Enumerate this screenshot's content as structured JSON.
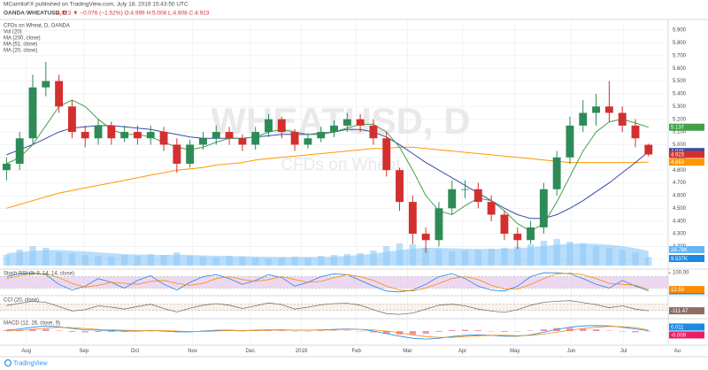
{
  "header": {
    "publisher": "MCarrilloFX published on TradingView.com, July 18, 2019 15:43:50 UTC",
    "symbol": "OANDA:WHEATUSD, D",
    "quote": "4.923 ▼ −0.076 (−1.52%) O:4.999 H:5.008 L:4.908 C:4.923"
  },
  "footer": {
    "brand": "TradingView"
  },
  "chart_data": [
    {
      "type": "candlestick",
      "title": "CFDs on Wheat, D, OANDA",
      "watermark": "WHEATUSD, D",
      "watermark_subtitle": "CFDs on Wheat",
      "up_color": "#2e8b57",
      "down_color": "#d32f2f",
      "grid": true,
      "x": [
        0,
        1,
        2,
        3,
        4,
        5,
        6,
        7,
        8,
        9,
        10,
        11,
        12,
        13,
        14,
        15,
        16,
        17,
        18,
        19,
        20,
        21,
        22,
        23,
        24,
        25,
        26,
        27,
        28,
        29,
        30,
        31,
        32,
        33,
        34,
        35,
        36,
        37,
        38,
        39,
        40,
        41,
        42,
        43,
        44,
        45,
        46,
        47,
        48,
        49
      ],
      "open": [
        4.8,
        4.85,
        5.05,
        5.45,
        5.5,
        5.3,
        5.1,
        5.05,
        5.15,
        5.05,
        5.1,
        5.05,
        5.1,
        5.0,
        4.85,
        5.0,
        5.05,
        5.1,
        5.05,
        5.0,
        5.1,
        5.2,
        5.1,
        5.0,
        5.05,
        5.1,
        5.15,
        5.2,
        5.15,
        5.05,
        4.8,
        4.55,
        4.3,
        4.25,
        4.5,
        4.65,
        4.65,
        4.55,
        4.45,
        4.3,
        4.25,
        4.35,
        4.65,
        4.9,
        5.15,
        5.25,
        5.3,
        5.25,
        5.15,
        4.999
      ],
      "high": [
        4.9,
        5.1,
        5.55,
        5.65,
        5.55,
        5.35,
        5.15,
        5.2,
        5.18,
        5.15,
        5.15,
        5.15,
        5.14,
        5.05,
        5.04,
        5.1,
        5.15,
        5.14,
        5.08,
        5.14,
        5.24,
        5.22,
        5.12,
        5.09,
        5.14,
        5.19,
        5.25,
        5.24,
        5.2,
        5.1,
        4.82,
        4.6,
        4.35,
        4.55,
        4.72,
        4.72,
        4.7,
        4.6,
        4.48,
        4.35,
        4.4,
        4.7,
        4.95,
        5.22,
        5.35,
        5.4,
        5.5,
        5.3,
        5.2,
        5.008
      ],
      "low": [
        4.72,
        4.8,
        5.0,
        5.38,
        5.25,
        5.05,
        4.98,
        5.0,
        5.0,
        5.02,
        5.0,
        5.0,
        4.95,
        4.78,
        4.82,
        4.96,
        5.0,
        5.0,
        4.95,
        4.96,
        5.06,
        5.05,
        4.95,
        4.97,
        5.02,
        5.06,
        5.1,
        5.1,
        5.0,
        4.75,
        4.48,
        4.22,
        4.15,
        4.2,
        4.45,
        4.58,
        4.5,
        4.4,
        4.25,
        4.18,
        4.22,
        4.3,
        4.6,
        4.85,
        5.1,
        5.15,
        5.18,
        5.1,
        4.98,
        4.908
      ],
      "close": [
        4.85,
        5.05,
        5.45,
        5.5,
        5.3,
        5.1,
        5.05,
        5.15,
        5.05,
        5.1,
        5.05,
        5.1,
        5.0,
        4.85,
        5.0,
        5.05,
        5.1,
        5.05,
        5.0,
        5.1,
        5.2,
        5.1,
        5.0,
        5.05,
        5.1,
        5.15,
        5.2,
        5.15,
        5.05,
        4.8,
        4.55,
        4.3,
        4.25,
        4.5,
        4.65,
        4.65,
        4.55,
        4.45,
        4.3,
        4.25,
        4.35,
        4.65,
        4.9,
        5.15,
        5.25,
        5.3,
        5.25,
        5.15,
        5.05,
        4.923
      ],
      "volume": {
        "name": "Vol (20)",
        "color": "#90caf9",
        "area_color": "#64b5f6",
        "values": [
          12000,
          18000,
          22000,
          20000,
          15000,
          14000,
          12000,
          11000,
          10000,
          12000,
          11000,
          13000,
          12000,
          15000,
          11000,
          10000,
          9000,
          11000,
          10000,
          9000,
          8000,
          9000,
          10000,
          9000,
          11000,
          12000,
          13000,
          14000,
          17000,
          22000,
          25000,
          24000,
          20000,
          18000,
          16000,
          17000,
          18000,
          19000,
          20000,
          21000,
          24000,
          28000,
          30000,
          27000,
          25000,
          22000,
          20000,
          18000,
          15000,
          9537
        ],
        "value_labels": [
          null,
          null,
          null,
          null,
          null,
          null,
          null,
          null,
          null,
          null,
          null,
          null,
          null,
          null,
          null,
          null,
          null,
          null,
          null,
          null,
          null,
          null,
          null,
          null,
          null,
          null,
          null,
          null,
          null,
          null,
          null,
          null,
          null,
          null,
          null,
          null,
          null,
          null,
          null,
          null,
          null,
          null,
          null,
          null,
          null,
          null,
          null,
          null,
          null,
          "9.537K"
        ],
        "ma_values": [
          14000,
          15000,
          16500,
          17500,
          17500,
          16800,
          16000,
          15000,
          14000,
          13000,
          12500,
          12000,
          12000,
          12200,
          12000,
          11500,
          11000,
          10800,
          10500,
          10200,
          10000,
          9800,
          9700,
          9700,
          9800,
          10200,
          11000,
          12000,
          13500,
          15500,
          17500,
          19000,
          20000,
          20000,
          19500,
          19000,
          18800,
          18800,
          19000,
          19500,
          20500,
          22000,
          23500,
          24500,
          25000,
          24500,
          23500,
          22000,
          19500,
          16780
        ],
        "ma_value_labels": [
          null,
          null,
          null,
          null,
          null,
          null,
          null,
          null,
          null,
          null,
          null,
          null,
          null,
          null,
          null,
          null,
          null,
          null,
          null,
          null,
          null,
          null,
          null,
          null,
          null,
          null,
          null,
          null,
          null,
          null,
          null,
          null,
          null,
          null,
          null,
          null,
          null,
          null,
          null,
          null,
          null,
          null,
          null,
          null,
          null,
          null,
          null,
          null,
          null,
          "16.78K"
        ],
        "lim": [
          0,
          60000
        ]
      },
      "series": [
        {
          "name": "MA (200, close)",
          "color": "#ff9800",
          "values": [
            4.5,
            4.53,
            4.56,
            4.59,
            4.62,
            4.64,
            4.66,
            4.68,
            4.7,
            4.72,
            4.74,
            4.76,
            4.78,
            4.8,
            4.81,
            4.82,
            4.84,
            4.85,
            4.86,
            4.88,
            4.89,
            4.9,
            4.91,
            4.92,
            4.93,
            4.94,
            4.95,
            4.96,
            4.97,
            4.97,
            4.98,
            4.98,
            4.97,
            4.96,
            4.95,
            4.94,
            4.93,
            4.92,
            4.91,
            4.9,
            4.89,
            4.88,
            4.87,
            4.86,
            4.86,
            4.86,
            4.86,
            4.86,
            4.86,
            4.863
          ]
        },
        {
          "name": "MA (51, close)",
          "color": "#3949ab",
          "values": [
            4.92,
            4.96,
            5.0,
            5.05,
            5.1,
            5.13,
            5.14,
            5.15,
            5.15,
            5.14,
            5.13,
            5.12,
            5.1,
            5.08,
            5.06,
            5.05,
            5.05,
            5.05,
            5.05,
            5.06,
            5.07,
            5.08,
            5.08,
            5.08,
            5.09,
            5.1,
            5.12,
            5.12,
            5.1,
            5.06,
            5.0,
            4.93,
            4.86,
            4.8,
            4.74,
            4.68,
            4.62,
            4.56,
            4.5,
            4.45,
            4.42,
            4.42,
            4.45,
            4.5,
            4.56,
            4.63,
            4.7,
            4.78,
            4.86,
            4.946
          ]
        },
        {
          "name": "MA (20, close)",
          "color": "#43a047",
          "values": [
            4.85,
            4.9,
            5.0,
            5.15,
            5.3,
            5.35,
            5.3,
            5.2,
            5.12,
            5.08,
            5.08,
            5.06,
            5.02,
            4.98,
            4.96,
            4.98,
            5.02,
            5.05,
            5.05,
            5.06,
            5.1,
            5.12,
            5.1,
            5.08,
            5.08,
            5.1,
            5.13,
            5.16,
            5.16,
            5.1,
            4.98,
            4.8,
            4.6,
            4.48,
            4.45,
            4.52,
            4.58,
            4.56,
            4.48,
            4.38,
            4.32,
            4.38,
            4.55,
            4.75,
            4.95,
            5.1,
            5.18,
            5.2,
            5.17,
            5.137
          ]
        }
      ],
      "xlim": [
        -0.5,
        50.5
      ],
      "xticks": [
        {
          "value": 1.5,
          "label": "Aug"
        },
        {
          "value": 5.9,
          "label": "Sep"
        },
        {
          "value": 9.8,
          "label": "Oct"
        },
        {
          "value": 14.2,
          "label": "Nov"
        },
        {
          "value": 18.6,
          "label": "Dec"
        },
        {
          "value": 22.5,
          "label": "2019"
        },
        {
          "value": 26.7,
          "label": "Feb"
        },
        {
          "value": 30.6,
          "label": "Mar"
        },
        {
          "value": 34.8,
          "label": "Apr"
        },
        {
          "value": 38.8,
          "label": "May"
        },
        {
          "value": 43.1,
          "label": "Jun"
        },
        {
          "value": 47.1,
          "label": "Jul"
        },
        {
          "value": 51.2,
          "label": "Au"
        }
      ],
      "ylim": [
        4.05,
        5.97
      ],
      "yticks": [
        {
          "value": 4.1,
          "label": "4.100"
        },
        {
          "value": 4.2,
          "label": "4.200"
        },
        {
          "value": 4.3,
          "label": "4.300"
        },
        {
          "value": 4.4,
          "label": "4.400"
        },
        {
          "value": 4.5,
          "label": "4.500"
        },
        {
          "value": 4.6,
          "label": "4.600"
        },
        {
          "value": 4.7,
          "label": "4.700"
        },
        {
          "value": 4.8,
          "label": "4.800"
        },
        {
          "value": 4.9,
          "label": "4.900"
        },
        {
          "value": 5.0,
          "label": "5.000"
        },
        {
          "value": 5.1,
          "label": "5.100"
        },
        {
          "value": 5.2,
          "label": "5.200"
        },
        {
          "value": 5.3,
          "label": "5.300"
        },
        {
          "value": 5.4,
          "label": "5.400"
        },
        {
          "value": 5.5,
          "label": "5.500"
        },
        {
          "value": 5.6,
          "label": "5.600"
        },
        {
          "value": 5.7,
          "label": "5.700"
        },
        {
          "value": 5.8,
          "label": "5.800"
        },
        {
          "value": 5.9,
          "label": "5.900"
        }
      ]
    },
    {
      "type": "line",
      "title": "Stoch RSI (3, 3, 14, 14, close)",
      "band": [
        20,
        80
      ],
      "band_color": "#e1bee7",
      "series": [
        {
          "color": "#1e88e5",
          "values": [
            80,
            95,
            100,
            90,
            40,
            10,
            30,
            70,
            50,
            20,
            60,
            85,
            40,
            10,
            50,
            80,
            90,
            70,
            40,
            60,
            90,
            75,
            30,
            50,
            80,
            95,
            90,
            60,
            30,
            5,
            0,
            10,
            40,
            80,
            95,
            70,
            30,
            10,
            5,
            30,
            80,
            100,
            100,
            95,
            70,
            40,
            20,
            60,
            30,
            6.11
          ]
        },
        {
          "color": "#fb8c00",
          "values": [
            70,
            85,
            95,
            95,
            75,
            45,
            25,
            35,
            50,
            45,
            40,
            55,
            60,
            45,
            35,
            45,
            70,
            80,
            65,
            55,
            65,
            80,
            65,
            50,
            55,
            75,
            90,
            80,
            60,
            30,
            10,
            5,
            20,
            45,
            70,
            80,
            65,
            35,
            15,
            15,
            40,
            70,
            95,
            98,
            90,
            70,
            45,
            40,
            35,
            12.59
          ]
        }
      ],
      "ylim": [
        -10,
        110
      ],
      "yticks": [
        {
          "value": 100,
          "label": "100.00"
        }
      ]
    },
    {
      "type": "line",
      "title": "CCI (20, close)",
      "band": [
        -100,
        100
      ],
      "band_color": "#f3ead8",
      "series": [
        {
          "color": "#8d6e63",
          "values": [
            50,
            120,
            180,
            150,
            20,
            -120,
            -80,
            40,
            0,
            -60,
            20,
            90,
            -40,
            -150,
            -30,
            60,
            110,
            60,
            -40,
            40,
            130,
            80,
            -60,
            0,
            70,
            110,
            120,
            60,
            -80,
            -200,
            -220,
            -180,
            -60,
            60,
            90,
            40,
            -60,
            -120,
            -160,
            -80,
            60,
            150,
            180,
            200,
            140,
            80,
            -20,
            40,
            -60,
            -111.47
          ]
        }
      ],
      "ylim": [
        -300,
        300
      ],
      "yticks": []
    },
    {
      "type": "macd",
      "title": "MACD (12, 26, close, 9)",
      "histogram": {
        "color": "#f48fb1",
        "values": [
          0.02,
          0.03,
          0.05,
          0.05,
          0.01,
          -0.02,
          -0.03,
          -0.02,
          -0.02,
          -0.02,
          -0.01,
          0.0,
          -0.01,
          -0.02,
          -0.01,
          0.01,
          0.02,
          0.01,
          0.0,
          0.01,
          0.01,
          0.01,
          0.0,
          0.0,
          0.01,
          0.01,
          0.01,
          0.0,
          -0.03,
          -0.06,
          -0.08,
          -0.08,
          -0.06,
          -0.02,
          0.02,
          0.03,
          0.02,
          0.0,
          -0.02,
          -0.01,
          0.01,
          0.04,
          0.07,
          0.07,
          0.06,
          0.04,
          0.01,
          -0.01,
          -0.03,
          -0.009
        ]
      },
      "series": [
        {
          "color": "#1e88e5",
          "values": [
            0.02,
            0.05,
            0.09,
            0.12,
            0.1,
            0.06,
            0.03,
            0.02,
            0.01,
            0.0,
            0.0,
            0.01,
            0.0,
            -0.02,
            -0.02,
            0.0,
            0.02,
            0.02,
            0.01,
            0.02,
            0.03,
            0.03,
            0.02,
            0.02,
            0.03,
            0.04,
            0.05,
            0.04,
            0.0,
            -0.06,
            -0.12,
            -0.17,
            -0.19,
            -0.17,
            -0.13,
            -0.1,
            -0.09,
            -0.1,
            -0.12,
            -0.12,
            -0.09,
            -0.03,
            0.04,
            0.09,
            0.12,
            0.13,
            0.12,
            0.09,
            0.05,
            0.011
          ]
        },
        {
          "color": "#fb8c00",
          "values": [
            0.0,
            0.02,
            0.04,
            0.07,
            0.09,
            0.08,
            0.06,
            0.04,
            0.03,
            0.02,
            0.01,
            0.01,
            0.01,
            0.0,
            -0.01,
            -0.01,
            0.0,
            0.01,
            0.01,
            0.01,
            0.02,
            0.02,
            0.02,
            0.02,
            0.02,
            0.03,
            0.04,
            0.04,
            0.03,
            0.0,
            -0.04,
            -0.09,
            -0.13,
            -0.15,
            -0.15,
            -0.13,
            -0.11,
            -0.1,
            -0.1,
            -0.11,
            -0.1,
            -0.07,
            -0.03,
            0.02,
            0.06,
            0.09,
            0.11,
            0.1,
            0.08,
            0.02
          ]
        }
      ],
      "ylim": [
        -0.25,
        0.25
      ],
      "yticks": []
    }
  ]
}
